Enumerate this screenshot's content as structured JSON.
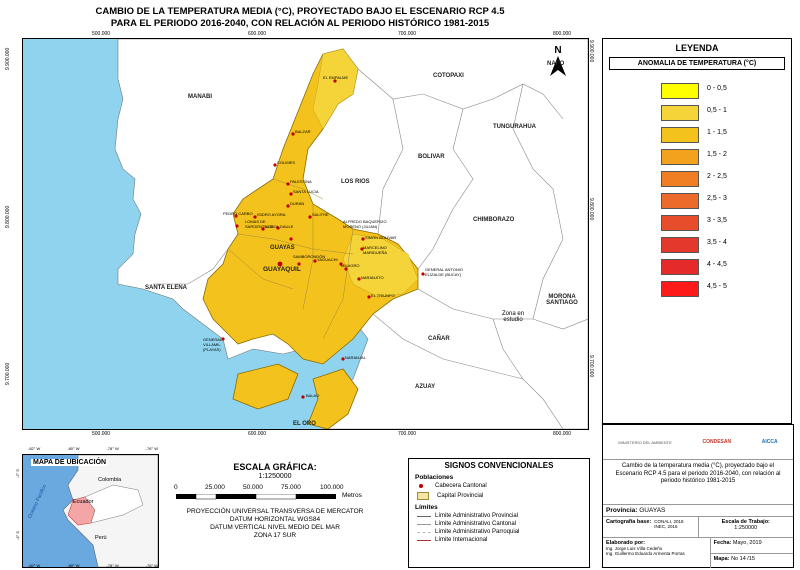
{
  "title": {
    "line1": "CAMBIO DE LA TEMPERATURA MEDIA (°C),  PROYECTADO BAJO EL ESCENARIO RCP 4.5",
    "line2": "PARA EL PERIODO 2016-2040, CON RELACIÓN AL PERIODO HISTÓRICO 1981-2015"
  },
  "map": {
    "ticks_top": [
      "500.000",
      "600.000",
      "700.000",
      "800.000"
    ],
    "ticks_bottom": [
      "500.000",
      "600.000",
      "700.000",
      "800.000"
    ],
    "ticks_left": [
      "9.900.000",
      "9.800.000",
      "9.700.000"
    ],
    "ticks_right": [
      "9.900.000",
      "9.800.000",
      "9.700.000"
    ],
    "north": "N",
    "napo": "NAPO",
    "regions": [
      "MANABI",
      "COTOPAXI",
      "TUNGURAHUA",
      "LOS RIOS",
      "BOLIVAR",
      "CHIMBORAZO",
      "SANTA ELENA",
      "GUAYAS",
      "CAÑAR",
      "AZUAY",
      "MORONA SANTIAGO",
      "Zona en estudio"
    ],
    "cities": [
      "GUAYAQUIL",
      "BALZAR",
      "COLIMES",
      "PALESTINA",
      "SANTA LUCIA",
      "PEDRO CARBO",
      "ISIDRO AYORA",
      "LOMAS DE SARGENTILLO",
      "NOBOL",
      "DAULE",
      "SALITRE",
      "SAMBORONDÓN",
      "ALFREDO BAQUERIZO MORENO (JUJAN)",
      "SIMÓN BOLÍVAR",
      "YAGUACHI",
      "MILAGRO",
      "NARANJITO",
      "MARCELINO MARIDUEÑA",
      "EL TRIUNFO",
      "GENERAL ANTONIO ELIZALDE (BUCAY)",
      "NARANJAL",
      "BALAO",
      "EL EMPALME",
      "GENERAL VILLAMIL (PLAYAS)",
      "DURÁN",
      "EL ORO"
    ]
  },
  "legend": {
    "title": "LEYENDA",
    "subtitle": "ANOMALIA DE TEMPERATURA (°C)",
    "items": [
      {
        "label": "0 - 0,5",
        "color": "#ffff00"
      },
      {
        "label": "0,5 - 1",
        "color": "#f5d43a"
      },
      {
        "label": "1 - 1,5",
        "color": "#f4c21d"
      },
      {
        "label": "1,5 - 2",
        "color": "#f2a21c"
      },
      {
        "label": "2 - 2,5",
        "color": "#ef7f22"
      },
      {
        "label": "2,5 - 3",
        "color": "#ec6a2a"
      },
      {
        "label": "3 - 3,5",
        "color": "#e84d2b"
      },
      {
        "label": "3,5 - 4",
        "color": "#e5382c"
      },
      {
        "label": "4 - 4,5",
        "color": "#e52a2a"
      },
      {
        "label": "4,5 - 5",
        "color": "#ff1a1a"
      }
    ]
  },
  "locmap": {
    "title": "MAPA DE UBICACIÓN",
    "colombia": "Colombia",
    "ecuador": "Ecuador",
    "peru": "Perú",
    "ocean": "Oceano Pacífico",
    "ticks_top": [
      "-82° W",
      "-80° W",
      "-78° W",
      "-76° W"
    ],
    "ticks_bottom": [
      "-82° W",
      "-80° W",
      "-78° W",
      "-76° W"
    ],
    "ticks_left": [
      "-2° S",
      "-4° S"
    ]
  },
  "scale": {
    "title": "ESCALA GRÁFICA:",
    "ratio": "1:1250000",
    "ticks": [
      "0",
      "25.000",
      "50.000",
      "75.000",
      "100.000"
    ],
    "units": "Metros",
    "proj1": "PROYECCIÓN UNIVERSAL TRANSVERSA DE MERCATOR",
    "proj2": "DATUM HORIZONTAL WGS84",
    "proj3": "DATUM VERTICAL NIVEL MEDIO DEL MAR",
    "proj4": "ZONA 17 SUR"
  },
  "signos": {
    "title": "SIGNOS CONVENCIONALES",
    "poblaciones": "Poblaciones",
    "cabecera": "Cabecera Cantonal",
    "capital": "Capital Provincial",
    "limites": "Límites",
    "lim_prov": "Límite Administrativo Provincial",
    "lim_cant": "Límite Administrativo Cantonal",
    "lim_parr": "Límite Administrativo Parroquial",
    "lim_int": "Límite Internacional"
  },
  "info": {
    "logos": [
      "MINISTERIO DEL AMBIENTE",
      "CONDESAN",
      "AICCA"
    ],
    "description": "Cambio de la temperatura media (°C),  proyectado bajo el Escenario RCP 4.5 para el periodo 2016-2040, con relación al periodo histórico 1981-2015",
    "provincia_label": "Provincia:",
    "provincia": "GUAYAS",
    "cartografia_label": "Cartografía base:",
    "cartografia1": "CONALI, 2018",
    "cartografia2": "INEC, 2016",
    "escala_label": "Escala de Trabajo:",
    "escala": "1:250000",
    "elaborado_label": "Elaborado por:",
    "autor1": "Ing. Jorge Luis Villa Cedeño",
    "autor2": "Ing. Guillermo Eduardo Armenta Porras",
    "fecha_label": "Fecha:",
    "fecha": "Mayo, 2019",
    "mapa_label": "Mapa:",
    "mapa": "No 14 /15"
  }
}
